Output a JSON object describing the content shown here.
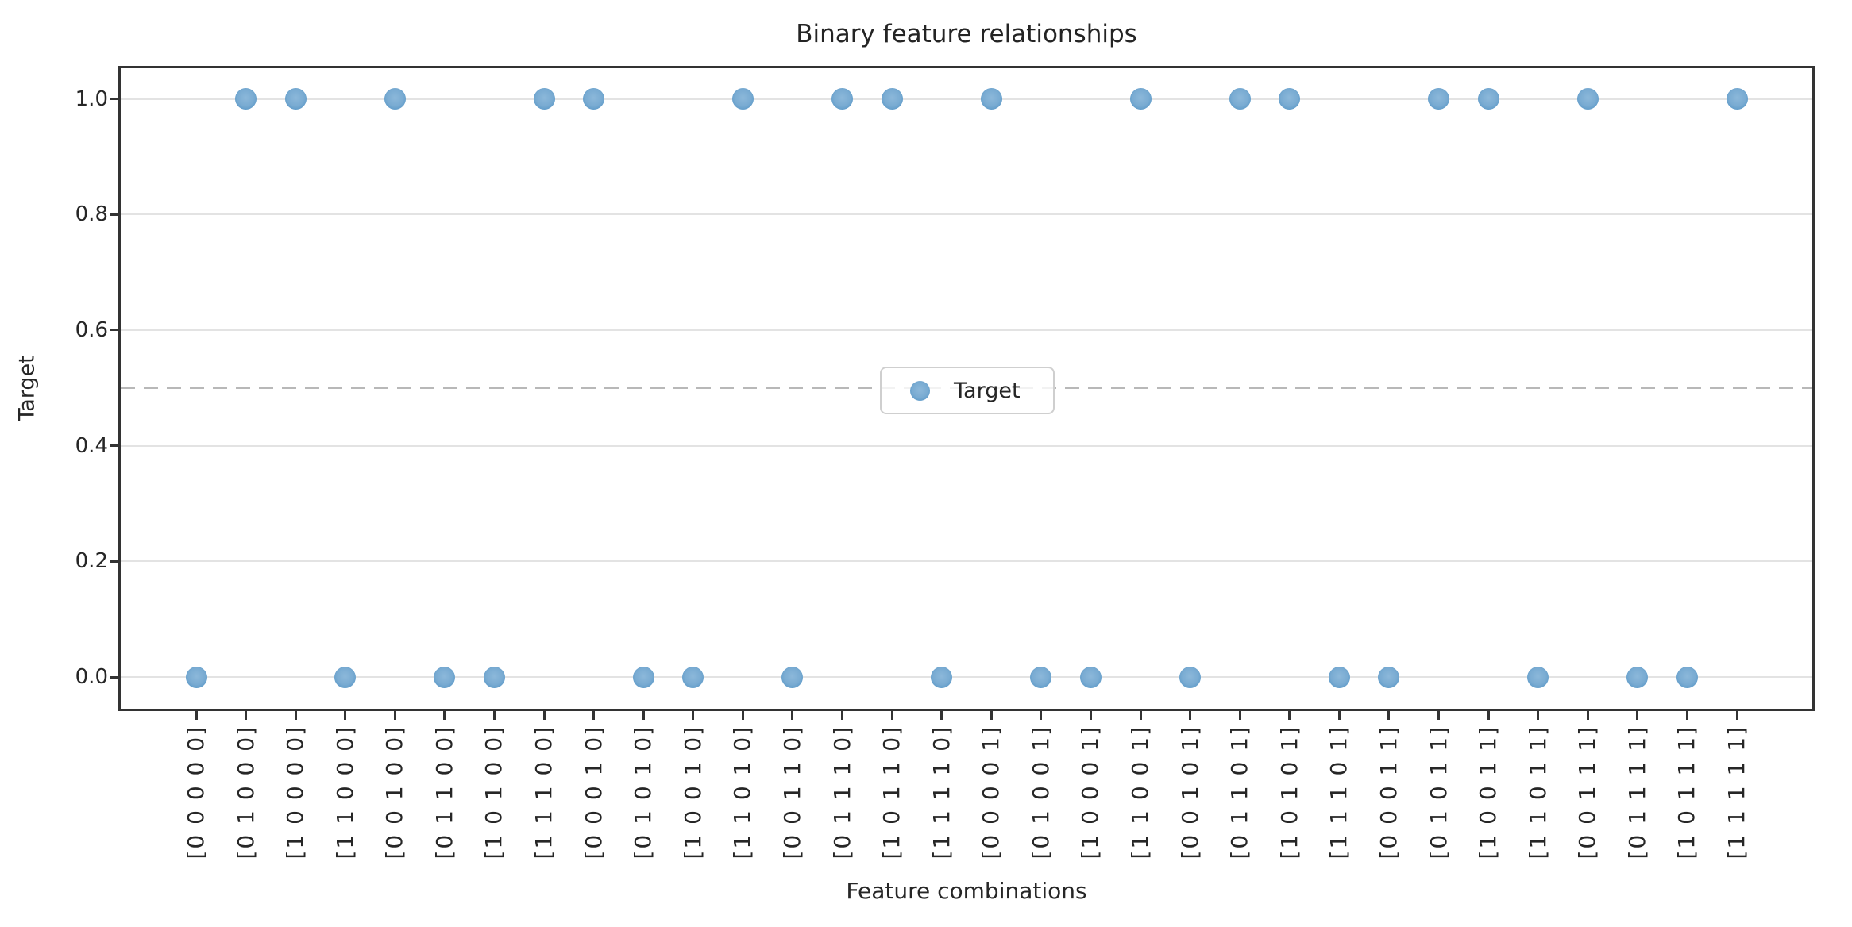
{
  "title": "Binary feature relationships",
  "chart_data": {
    "type": "scatter",
    "title": "Binary feature relationships",
    "xlabel": "Feature combinations",
    "ylabel": "Target",
    "series_name": "Target",
    "categories": [
      "[0 0 0 0 0]",
      "[0 1 0 0 0]",
      "[1 0 0 0 0]",
      "[1 1 0 0 0]",
      "[0 0 1 0 0]",
      "[0 1 1 0 0]",
      "[1 0 1 0 0]",
      "[1 1 1 0 0]",
      "[0 0 0 1 0]",
      "[0 1 0 1 0]",
      "[1 0 0 1 0]",
      "[1 1 0 1 0]",
      "[0 0 1 1 0]",
      "[0 1 1 1 0]",
      "[1 0 1 1 0]",
      "[1 1 1 1 0]",
      "[0 0 0 0 1]",
      "[0 1 0 0 1]",
      "[1 0 0 0 1]",
      "[1 1 0 0 1]",
      "[0 0 1 0 1]",
      "[0 1 1 0 1]",
      "[1 0 1 0 1]",
      "[1 1 1 0 1]",
      "[0 0 0 1 1]",
      "[0 1 0 1 1]",
      "[1 0 0 1 1]",
      "[1 1 0 1 1]",
      "[0 0 1 1 1]",
      "[0 1 1 1 1]",
      "[1 0 1 1 1]",
      "[1 1 1 1 1]"
    ],
    "values": [
      0,
      1,
      1,
      0,
      1,
      0,
      0,
      1,
      1,
      0,
      0,
      1,
      0,
      1,
      1,
      0,
      1,
      0,
      0,
      1,
      0,
      1,
      1,
      0,
      0,
      1,
      1,
      0,
      1,
      0,
      0,
      1
    ],
    "yticks": [
      0.0,
      0.2,
      0.4,
      0.6,
      0.8,
      1.0
    ],
    "ytick_labels": [
      "0.0",
      "0.2",
      "0.4",
      "0.6",
      "0.8",
      "1.0"
    ],
    "ylim": [
      -0.055,
      1.055
    ],
    "reference_line_y": 0.5,
    "grid": "horizontal",
    "legend": {
      "label": "Target",
      "position": "center"
    },
    "colors": {
      "marker": "#79abd2",
      "marker_edge": "#5291c4",
      "reference_line": "#b8b8b8",
      "gridline": "#e3e3e3",
      "axis": "#333333",
      "text": "#262626"
    }
  }
}
